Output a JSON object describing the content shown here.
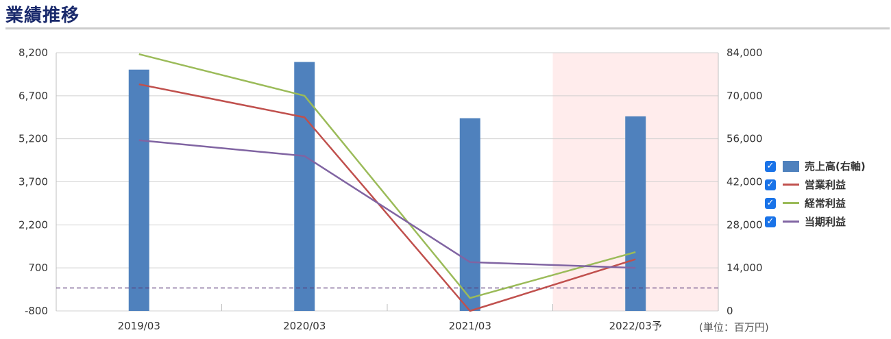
{
  "header": {
    "title": "業績推移"
  },
  "chart_data": {
    "type": "bar+line",
    "categories": [
      "2019/03",
      "2020/03",
      "2021/03",
      "2022/03予"
    ],
    "left_axis": {
      "ticks": [
        "8,200",
        "6,700",
        "5,200",
        "3,700",
        "2,200",
        "700",
        "-800"
      ],
      "ylim": [
        -800,
        8200
      ]
    },
    "right_axis": {
      "ticks": [
        "84,000",
        "70,000",
        "56,000",
        "42,000",
        "28,000",
        "14,000",
        "0"
      ],
      "ylim": [
        0,
        84000
      ]
    },
    "bars": {
      "name": "売上高(右軸)",
      "axis": "right",
      "color": "#4f81bd",
      "values": [
        78500,
        81000,
        62700,
        63300
      ]
    },
    "lines": [
      {
        "name": "営業利益",
        "color": "#c0504d",
        "values": [
          7100,
          5950,
          -800,
          1000
        ]
      },
      {
        "name": "経常利益",
        "color": "#9bbb59",
        "values": [
          8150,
          6700,
          -350,
          1250
        ]
      },
      {
        "name": "当期利益",
        "color": "#8064a2",
        "values": [
          5150,
          4600,
          900,
          700
        ]
      }
    ],
    "reference_line": {
      "value": 0,
      "color": "#5b3a7a",
      "style": "dashed"
    },
    "forecast_highlight": {
      "category": "2022/03予",
      "color": "#ffecec"
    },
    "grid": true,
    "legend_position": "right"
  },
  "legend": {
    "items": [
      {
        "label": "売上高(右軸)",
        "checked": "✓"
      },
      {
        "label": "営業利益",
        "checked": "✓"
      },
      {
        "label": "経常利益",
        "checked": "✓"
      },
      {
        "label": "当期利益",
        "checked": "✓"
      }
    ]
  },
  "unit_note": "(単位：百万円)"
}
